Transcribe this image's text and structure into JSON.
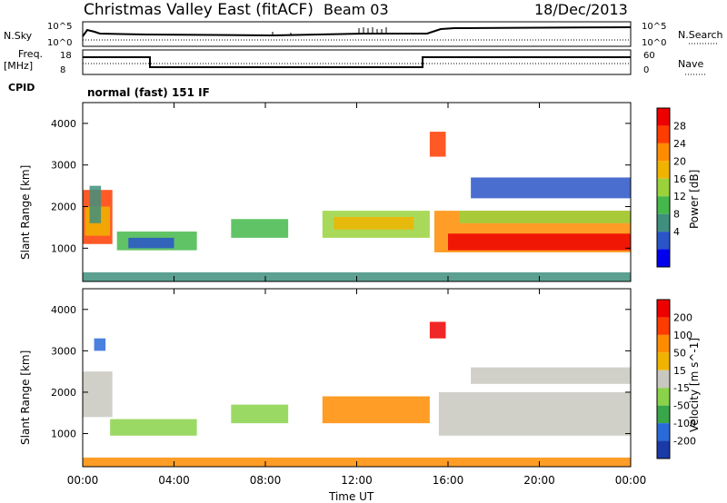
{
  "header": {
    "site_title": "Christmas Valley East (fitACF)",
    "beam": "Beam 03",
    "date": "18/Dec/2013"
  },
  "top_panels": {
    "nsky_label": "N.Sky",
    "nsky_ticks": [
      "10^5",
      "10^0"
    ],
    "nsearch_label": "N.Search",
    "nsearch_ticks": [
      "10^5",
      "10^0"
    ],
    "freq_label": "Freq.",
    "freq_unit": "[MHz]",
    "freq_ticks": [
      "18",
      "8"
    ],
    "nave_label": "Nave",
    "nave_ticks": [
      "60",
      "0"
    ],
    "cpid_label": "CPID",
    "cpid_value": "normal (fast) 151 IF"
  },
  "colors": {
    "power": [
      "#0000ee",
      "#2a55c8",
      "#3f8f7e",
      "#44b84a",
      "#9ad23c",
      "#f0b400",
      "#ff8c00",
      "#ff3c00",
      "#ee0000"
    ],
    "velocity": [
      "#1a3aa8",
      "#2a6ad8",
      "#3aa64a",
      "#8ad24a",
      "#c8c8c0",
      "#f0b400",
      "#ff8c00",
      "#ff3c00",
      "#ee0000"
    ]
  },
  "chart_data": [
    {
      "type": "heatmap",
      "panel": "power",
      "ylabel": "Slant Range [km]",
      "yticks": [
        1000,
        2000,
        3000,
        4000
      ],
      "ylim": [
        200,
        4500
      ],
      "xlim": [
        0,
        24
      ],
      "colorbar_label": "Power [dB]",
      "colorbar_ticks": [
        "4",
        "8",
        "12",
        "16",
        "20",
        "24",
        "28"
      ],
      "regions": [
        {
          "t0": 0.0,
          "t1": 1.3,
          "r0": 1100,
          "r1": 2400,
          "c": 7
        },
        {
          "t0": 0.1,
          "t1": 1.2,
          "r0": 1300,
          "r1": 2000,
          "c": 5
        },
        {
          "t0": 0.3,
          "t1": 0.8,
          "r0": 1600,
          "r1": 2500,
          "c": 2
        },
        {
          "t0": 1.5,
          "t1": 5.0,
          "r0": 950,
          "r1": 1400,
          "c": 3
        },
        {
          "t0": 2.0,
          "t1": 4.0,
          "r0": 1000,
          "r1": 1250,
          "c": 1
        },
        {
          "t0": 6.5,
          "t1": 9.0,
          "r0": 1250,
          "r1": 1700,
          "c": 3
        },
        {
          "t0": 10.5,
          "t1": 15.2,
          "r0": 1250,
          "r1": 1900,
          "c": 4
        },
        {
          "t0": 11.0,
          "t1": 14.5,
          "r0": 1450,
          "r1": 1750,
          "c": 5
        },
        {
          "t0": 15.2,
          "t1": 15.9,
          "r0": 3200,
          "r1": 3800,
          "c": 7
        },
        {
          "t0": 15.4,
          "t1": 24.0,
          "r0": 900,
          "r1": 1900,
          "c": 6
        },
        {
          "t0": 16.0,
          "t1": 24.0,
          "r0": 950,
          "r1": 1350,
          "c": 8
        },
        {
          "t0": 16.5,
          "t1": 24.0,
          "r0": 1600,
          "r1": 1900,
          "c": 4
        },
        {
          "t0": 17.0,
          "t1": 24.0,
          "r0": 2200,
          "r1": 2700,
          "c": 1
        },
        {
          "t0": 0.0,
          "t1": 24.0,
          "r0": 200,
          "r1": 420,
          "c": 2
        }
      ]
    },
    {
      "type": "heatmap",
      "panel": "velocity",
      "ylabel": "Slant Range [km]",
      "yticks": [
        1000,
        2000,
        3000,
        4000
      ],
      "ylim": [
        200,
        4500
      ],
      "xlim": [
        0,
        24
      ],
      "xlabel": "Time UT",
      "xticks": [
        "00:00",
        "04:00",
        "08:00",
        "12:00",
        "16:00",
        "20:00",
        "00:00"
      ],
      "colorbar_label": "Velocity [m s^-1]",
      "colorbar_ticks": [
        "200",
        "100",
        "50",
        "15",
        "-15",
        "-50",
        "-100",
        "-200"
      ],
      "regions": [
        {
          "t0": 0.0,
          "t1": 1.3,
          "r0": 1400,
          "r1": 2500,
          "c": 4
        },
        {
          "t0": 0.5,
          "t1": 1.0,
          "r0": 3000,
          "r1": 3300,
          "c": 1
        },
        {
          "t0": 1.2,
          "t1": 5.0,
          "r0": 950,
          "r1": 1350,
          "c": 3
        },
        {
          "t0": 6.5,
          "t1": 9.0,
          "r0": 1250,
          "r1": 1700,
          "c": 3
        },
        {
          "t0": 10.5,
          "t1": 15.2,
          "r0": 1250,
          "r1": 1900,
          "c": 6
        },
        {
          "t0": 15.2,
          "t1": 15.9,
          "r0": 3300,
          "r1": 3700,
          "c": 8
        },
        {
          "t0": 15.6,
          "t1": 24.0,
          "r0": 950,
          "r1": 2000,
          "c": 4
        },
        {
          "t0": 17.0,
          "t1": 24.0,
          "r0": 2200,
          "r1": 2600,
          "c": 4
        },
        {
          "t0": 0.0,
          "t1": 24.0,
          "r0": 200,
          "r1": 420,
          "c": 6
        }
      ]
    }
  ]
}
